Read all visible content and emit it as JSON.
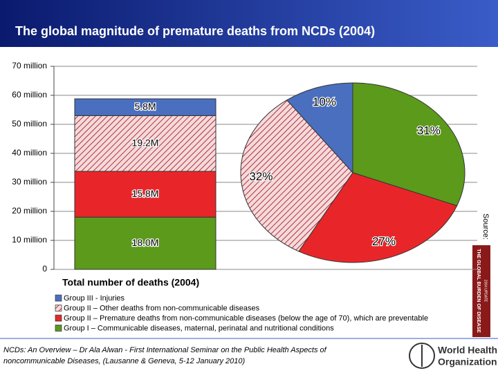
{
  "title": "The global magnitude of premature deaths from NCDs (2004)",
  "source_label": "Source:",
  "book_cover": {
    "title": "THE GLOBAL BURDEN OF DISEASE",
    "subtitle": "2004 UPDATE"
  },
  "footer": {
    "citation_line1": "NCDs: An Overview – Dr Ala Alwan - First International Seminar on the Public Health Aspects of",
    "citation_line2": "noncommunicable Diseases, (Lausanne & Geneva, 5-12 January 2010)",
    "logo_line1": "World Health",
    "logo_line2": "Organization"
  },
  "chart_data": [
    {
      "type": "stacked_bar",
      "xlabel": "Total number of deaths (2004)",
      "ylim": [
        0,
        70
      ],
      "yticks": [
        0,
        {
          "value": 10,
          "label": "10 million"
        },
        {
          "value": 20,
          "label": "20 million"
        },
        {
          "value": 30,
          "label": "30 million"
        },
        {
          "value": 40,
          "label": "40 million"
        },
        {
          "value": 50,
          "label": "50 million"
        },
        {
          "value": 60,
          "label": "60 million"
        },
        {
          "value": 70,
          "label": "70 million"
        }
      ],
      "grid": true,
      "series": [
        {
          "name": "Group I – Communicable diseases, maternal, perinatal and nutritional conditions",
          "color": "#5b9a1b",
          "values": [
            18.0
          ],
          "value_labels": [
            "18.0M"
          ]
        },
        {
          "name": "Group II – Premature deaths from non-communicable diseases (below the age of 70), which are preventable",
          "color": "#e8262a",
          "values": [
            15.8
          ],
          "value_labels": [
            "15.8M"
          ]
        },
        {
          "name": "Group II – Other deaths from non-communicable diseases",
          "color": "#b03040",
          "hatched": true,
          "values": [
            19.2
          ],
          "value_labels": [
            "19.2M"
          ]
        },
        {
          "name": "Group III - Injuries",
          "color": "#4a6fbf",
          "values": [
            5.8
          ],
          "value_labels": [
            "5.8M"
          ]
        }
      ]
    },
    {
      "type": "pie",
      "values": [
        31,
        27,
        32,
        10
      ],
      "value_labels": [
        "31%",
        "27%",
        "32%",
        "10%"
      ],
      "colors": [
        "#5b9a1b",
        "#e8262a",
        "#b03040",
        "#4a6fbf"
      ],
      "hatched": [
        false,
        false,
        true,
        false
      ]
    }
  ]
}
